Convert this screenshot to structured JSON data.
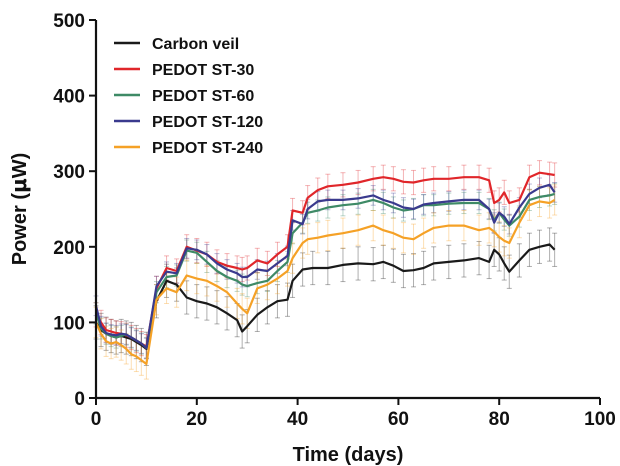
{
  "chart_data": {
    "type": "line",
    "title": "",
    "xlabel": "Time (days)",
    "ylabel_prefix": "Power (",
    "ylabel_mu": "μ",
    "ylabel_suffix": "W)",
    "xlim": [
      0,
      100
    ],
    "ylim": [
      0,
      500
    ],
    "xticks": [
      "0",
      "20",
      "40",
      "60",
      "80",
      "100"
    ],
    "yticks": [
      "0",
      "100",
      "200",
      "300",
      "400",
      "500"
    ],
    "grid": false,
    "legend_position": "top-left",
    "series": [
      {
        "name": "Carbon veil",
        "color": "#1a1a1a",
        "error": 22,
        "points": [
          [
            0,
            100
          ],
          [
            1,
            90
          ],
          [
            2,
            85
          ],
          [
            3,
            82
          ],
          [
            4,
            80
          ],
          [
            5,
            82
          ],
          [
            6,
            80
          ],
          [
            7,
            78
          ],
          [
            8,
            74
          ],
          [
            9,
            70
          ],
          [
            10,
            65
          ],
          [
            12,
            128
          ],
          [
            14,
            155
          ],
          [
            16,
            150
          ],
          [
            18,
            133
          ],
          [
            20,
            128
          ],
          [
            22,
            125
          ],
          [
            24,
            120
          ],
          [
            26,
            112
          ],
          [
            28,
            103
          ],
          [
            29,
            88
          ],
          [
            30,
            95
          ],
          [
            32,
            110
          ],
          [
            34,
            120
          ],
          [
            36,
            128
          ],
          [
            38,
            130
          ],
          [
            39,
            155
          ],
          [
            41,
            170
          ],
          [
            43,
            172
          ],
          [
            46,
            172
          ],
          [
            49,
            176
          ],
          [
            52,
            178
          ],
          [
            55,
            177
          ],
          [
            57,
            180
          ],
          [
            59,
            175
          ],
          [
            61,
            168
          ],
          [
            63,
            169
          ],
          [
            65,
            172
          ],
          [
            67,
            178
          ],
          [
            70,
            180
          ],
          [
            73,
            182
          ],
          [
            76,
            185
          ],
          [
            78,
            180
          ],
          [
            79,
            196
          ],
          [
            80,
            190
          ],
          [
            81,
            178
          ],
          [
            82,
            167
          ],
          [
            84,
            182
          ],
          [
            86,
            196
          ],
          [
            88,
            200
          ],
          [
            90,
            203
          ],
          [
            91,
            196
          ]
        ]
      },
      {
        "name": "PEDOT ST-30",
        "color": "#e0262a",
        "error": 16,
        "points": [
          [
            0,
            110
          ],
          [
            1,
            100
          ],
          [
            2,
            90
          ],
          [
            3,
            88
          ],
          [
            4,
            86
          ],
          [
            5,
            85
          ],
          [
            6,
            83
          ],
          [
            7,
            80
          ],
          [
            8,
            76
          ],
          [
            9,
            72
          ],
          [
            10,
            68
          ],
          [
            12,
            145
          ],
          [
            14,
            172
          ],
          [
            16,
            168
          ],
          [
            18,
            200
          ],
          [
            20,
            195
          ],
          [
            22,
            190
          ],
          [
            24,
            180
          ],
          [
            26,
            175
          ],
          [
            28,
            172
          ],
          [
            29,
            170
          ],
          [
            30,
            172
          ],
          [
            32,
            182
          ],
          [
            34,
            178
          ],
          [
            36,
            190
          ],
          [
            38,
            200
          ],
          [
            39,
            248
          ],
          [
            41,
            245
          ],
          [
            42,
            265
          ],
          [
            44,
            275
          ],
          [
            46,
            280
          ],
          [
            49,
            282
          ],
          [
            52,
            285
          ],
          [
            55,
            290
          ],
          [
            57,
            292
          ],
          [
            59,
            290
          ],
          [
            61,
            286
          ],
          [
            63,
            285
          ],
          [
            65,
            288
          ],
          [
            67,
            290
          ],
          [
            70,
            290
          ],
          [
            73,
            292
          ],
          [
            76,
            292
          ],
          [
            78,
            288
          ],
          [
            79,
            258
          ],
          [
            80,
            262
          ],
          [
            81,
            272
          ],
          [
            82,
            258
          ],
          [
            84,
            262
          ],
          [
            86,
            292
          ],
          [
            88,
            298
          ],
          [
            90,
            296
          ],
          [
            91,
            295
          ]
        ]
      },
      {
        "name": "PEDOT ST-60",
        "color": "#3e8a66",
        "error": 14,
        "points": [
          [
            0,
            112
          ],
          [
            1,
            92
          ],
          [
            2,
            85
          ],
          [
            3,
            82
          ],
          [
            4,
            80
          ],
          [
            5,
            82
          ],
          [
            6,
            84
          ],
          [
            7,
            80
          ],
          [
            8,
            76
          ],
          [
            9,
            72
          ],
          [
            10,
            66
          ],
          [
            12,
            140
          ],
          [
            14,
            160
          ],
          [
            16,
            162
          ],
          [
            18,
            195
          ],
          [
            20,
            192
          ],
          [
            22,
            180
          ],
          [
            24,
            168
          ],
          [
            26,
            160
          ],
          [
            28,
            155
          ],
          [
            29,
            150
          ],
          [
            30,
            148
          ],
          [
            32,
            152
          ],
          [
            34,
            155
          ],
          [
            36,
            168
          ],
          [
            38,
            180
          ],
          [
            39,
            218
          ],
          [
            41,
            232
          ],
          [
            42,
            245
          ],
          [
            44,
            248
          ],
          [
            46,
            252
          ],
          [
            49,
            255
          ],
          [
            52,
            257
          ],
          [
            55,
            262
          ],
          [
            57,
            258
          ],
          [
            59,
            252
          ],
          [
            61,
            248
          ],
          [
            63,
            250
          ],
          [
            65,
            255
          ],
          [
            67,
            255
          ],
          [
            70,
            257
          ],
          [
            73,
            258
          ],
          [
            76,
            258
          ],
          [
            78,
            250
          ],
          [
            79,
            235
          ],
          [
            80,
            245
          ],
          [
            81,
            236
          ],
          [
            82,
            228
          ],
          [
            84,
            240
          ],
          [
            86,
            262
          ],
          [
            88,
            266
          ],
          [
            90,
            268
          ],
          [
            91,
            270
          ]
        ]
      },
      {
        "name": "PEDOT ST-120",
        "color": "#3a3a8e",
        "error": 13,
        "points": [
          [
            0,
            122
          ],
          [
            1,
            95
          ],
          [
            2,
            86
          ],
          [
            3,
            84
          ],
          [
            4,
            83
          ],
          [
            5,
            85
          ],
          [
            6,
            84
          ],
          [
            7,
            80
          ],
          [
            8,
            76
          ],
          [
            9,
            72
          ],
          [
            10,
            66
          ],
          [
            12,
            148
          ],
          [
            14,
            167
          ],
          [
            16,
            165
          ],
          [
            18,
            198
          ],
          [
            20,
            196
          ],
          [
            22,
            190
          ],
          [
            24,
            178
          ],
          [
            26,
            170
          ],
          [
            28,
            165
          ],
          [
            29,
            160
          ],
          [
            30,
            160
          ],
          [
            32,
            170
          ],
          [
            34,
            168
          ],
          [
            36,
            178
          ],
          [
            38,
            188
          ],
          [
            39,
            235
          ],
          [
            41,
            230
          ],
          [
            42,
            250
          ],
          [
            44,
            260
          ],
          [
            46,
            262
          ],
          [
            49,
            262
          ],
          [
            52,
            264
          ],
          [
            55,
            268
          ],
          [
            57,
            262
          ],
          [
            59,
            258
          ],
          [
            61,
            252
          ],
          [
            63,
            250
          ],
          [
            65,
            256
          ],
          [
            67,
            258
          ],
          [
            70,
            260
          ],
          [
            73,
            262
          ],
          [
            76,
            262
          ],
          [
            78,
            250
          ],
          [
            79,
            232
          ],
          [
            80,
            245
          ],
          [
            81,
            240
          ],
          [
            82,
            230
          ],
          [
            84,
            252
          ],
          [
            86,
            270
          ],
          [
            88,
            278
          ],
          [
            90,
            282
          ],
          [
            91,
            272
          ]
        ]
      },
      {
        "name": "PEDOT ST-240",
        "color": "#f5a126",
        "error": 20,
        "points": [
          [
            0,
            100
          ],
          [
            1,
            85
          ],
          [
            2,
            75
          ],
          [
            3,
            72
          ],
          [
            4,
            74
          ],
          [
            5,
            70
          ],
          [
            6,
            65
          ],
          [
            7,
            58
          ],
          [
            8,
            55
          ],
          [
            9,
            50
          ],
          [
            10,
            45
          ],
          [
            12,
            130
          ],
          [
            14,
            145
          ],
          [
            16,
            140
          ],
          [
            18,
            162
          ],
          [
            20,
            158
          ],
          [
            22,
            155
          ],
          [
            24,
            148
          ],
          [
            26,
            140
          ],
          [
            28,
            125
          ],
          [
            29,
            118
          ],
          [
            30,
            112
          ],
          [
            32,
            145
          ],
          [
            34,
            150
          ],
          [
            36,
            158
          ],
          [
            38,
            168
          ],
          [
            39,
            185
          ],
          [
            41,
            205
          ],
          [
            42,
            210
          ],
          [
            44,
            212
          ],
          [
            46,
            215
          ],
          [
            49,
            218
          ],
          [
            52,
            222
          ],
          [
            55,
            228
          ],
          [
            57,
            222
          ],
          [
            59,
            218
          ],
          [
            61,
            212
          ],
          [
            63,
            210
          ],
          [
            65,
            218
          ],
          [
            67,
            225
          ],
          [
            70,
            228
          ],
          [
            73,
            228
          ],
          [
            76,
            222
          ],
          [
            78,
            225
          ],
          [
            79,
            220
          ],
          [
            80,
            213
          ],
          [
            81,
            208
          ],
          [
            82,
            205
          ],
          [
            84,
            232
          ],
          [
            86,
            255
          ],
          [
            88,
            260
          ],
          [
            90,
            258
          ],
          [
            91,
            262
          ]
        ]
      }
    ]
  }
}
